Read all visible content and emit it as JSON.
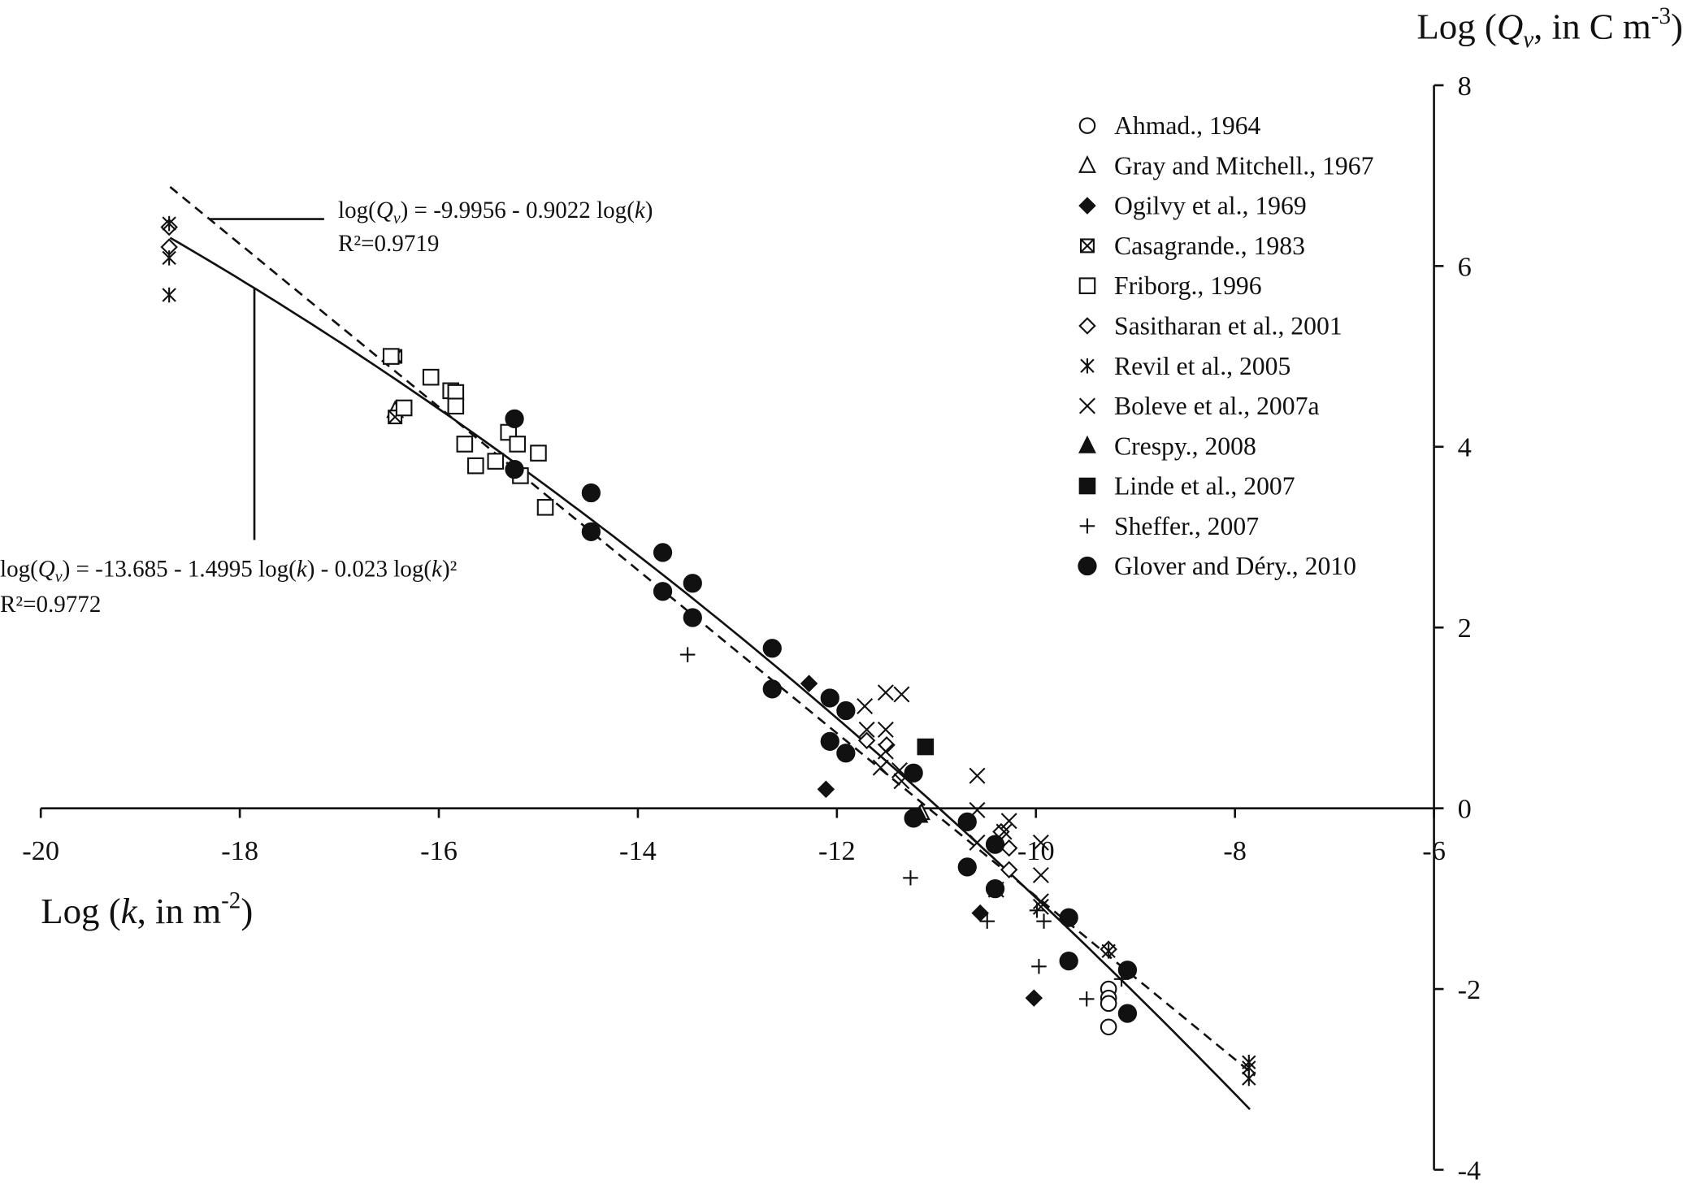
{
  "chart_data": {
    "type": "scatter",
    "xlabel": {
      "pre": "Log (",
      "var": "k",
      "mid": ", in m",
      "sup": "-2",
      "post": ")"
    },
    "ylabel": {
      "pre": "Log (",
      "var": "Q",
      "sub": "v",
      "mid": ", in C m",
      "sup": "-3",
      "post": ")"
    },
    "xlim": [
      -20,
      -6
    ],
    "ylim": [
      -4,
      8
    ],
    "x_ticks": [
      -20,
      -18,
      -16,
      -14,
      -12,
      -10,
      -8,
      -6
    ],
    "y_ticks": [
      -4,
      -2,
      0,
      2,
      4,
      6,
      8
    ],
    "legend_position": "top-right",
    "fits": [
      {
        "name": "linear fit",
        "style": "dashed",
        "coef": [
          -9.9956,
          -0.9022,
          0
        ],
        "xrange": [
          -18.7,
          -7.8
        ],
        "equation": {
          "a": "log(",
          "var": "Q",
          "sub": "v",
          "b": ") = -9.9956 - 0.9022 log(",
          "k": "k",
          "c": ")"
        },
        "r2": "R²=0.9719"
      },
      {
        "name": "quadratic fit",
        "style": "solid",
        "coef": [
          -13.685,
          -1.4995,
          -0.023
        ],
        "xrange": [
          -18.7,
          -7.85
        ],
        "equation": {
          "a": "log(",
          "var": "Q",
          "sub": "v",
          "b": ") = -13.685 - 1.4995 log(",
          "k": "k",
          "c": ") - 0.023 log(",
          "k2": "k",
          "d": ")²"
        },
        "r2": "R²=0.9772"
      }
    ],
    "series": [
      {
        "name": "Ahmad., 1964",
        "marker": "circle-open",
        "points": [
          [
            -9.27,
            -2.0
          ],
          [
            -9.27,
            -2.1
          ],
          [
            -9.27,
            -2.16
          ],
          [
            -9.27,
            -2.42
          ]
        ]
      },
      {
        "name": "Gray and Mitchell., 1967",
        "marker": "triangle-open",
        "points": [
          [
            -16.44,
            4.4
          ],
          [
            -11.15,
            -0.05
          ]
        ]
      },
      {
        "name": "Ogilvy et al., 1969",
        "marker": "diamond-filled",
        "points": [
          [
            -12.28,
            1.38
          ],
          [
            -12.11,
            0.21
          ],
          [
            -10.56,
            -1.16
          ],
          [
            -10.02,
            -2.1
          ]
        ]
      },
      {
        "name": "Casagrande., 1983",
        "marker": "square-cross",
        "points": [
          [
            -16.44,
            5.0
          ],
          [
            -16.44,
            4.33
          ]
        ]
      },
      {
        "name": "Friborg., 1996",
        "marker": "square-open",
        "points": [
          [
            -16.48,
            5.0
          ],
          [
            -16.35,
            4.43
          ],
          [
            -16.08,
            4.77
          ],
          [
            -15.88,
            4.62
          ],
          [
            -15.83,
            4.6
          ],
          [
            -15.83,
            4.45
          ],
          [
            -15.74,
            4.03
          ],
          [
            -15.63,
            3.79
          ],
          [
            -15.43,
            3.84
          ],
          [
            -15.3,
            4.16
          ],
          [
            -15.21,
            4.03
          ],
          [
            -15.18,
            3.68
          ],
          [
            -15.0,
            3.93
          ],
          [
            -14.93,
            3.33
          ]
        ]
      },
      {
        "name": "Sasitharan et al., 2001",
        "marker": "diamond-open",
        "points": [
          [
            -18.71,
            6.43
          ],
          [
            -18.71,
            6.21
          ],
          [
            -9.27,
            -1.56
          ],
          [
            -10.27,
            -0.44
          ],
          [
            -10.27,
            -0.68
          ],
          [
            -10.35,
            -0.26
          ],
          [
            -11.7,
            0.75
          ],
          [
            -11.5,
            0.7
          ]
        ]
      },
      {
        "name": "Revil et al., 2005",
        "marker": "asterisk",
        "points": [
          [
            -18.71,
            6.47
          ],
          [
            -18.71,
            6.09
          ],
          [
            -18.71,
            5.68
          ],
          [
            -7.86,
            -2.81
          ],
          [
            -7.86,
            -2.87
          ],
          [
            -7.86,
            -2.99
          ],
          [
            -9.27,
            -1.58
          ]
        ]
      },
      {
        "name": "Boleve et al., 2007a",
        "marker": "x",
        "points": [
          [
            -11.72,
            1.13
          ],
          [
            -11.51,
            1.28
          ],
          [
            -11.35,
            1.26
          ],
          [
            -11.7,
            0.87
          ],
          [
            -11.51,
            0.87
          ],
          [
            -11.51,
            0.63
          ],
          [
            -11.56,
            0.45
          ],
          [
            -11.37,
            0.42
          ],
          [
            -10.59,
            0.36
          ],
          [
            -10.59,
            -0.02
          ],
          [
            -10.59,
            -0.38
          ],
          [
            -10.32,
            -0.26
          ],
          [
            -10.27,
            -0.14
          ],
          [
            -9.95,
            -0.38
          ],
          [
            -9.95,
            -0.74
          ],
          [
            -9.95,
            -1.03
          ],
          [
            -9.95,
            -1.09
          ],
          [
            -11.35,
            0.3
          ],
          [
            -10.4,
            -0.9
          ]
        ]
      },
      {
        "name": "Crespy., 2008",
        "marker": "triangle-filled",
        "points": [
          [
            -11.17,
            -0.08
          ]
        ]
      },
      {
        "name": "Linde et al., 2007",
        "marker": "square-filled",
        "points": [
          [
            -11.11,
            0.68
          ]
        ]
      },
      {
        "name": "Sheffer., 2007",
        "marker": "plus",
        "points": [
          [
            -13.5,
            1.7
          ],
          [
            -11.26,
            -0.77
          ],
          [
            -10.49,
            -1.25
          ],
          [
            -9.99,
            -1.13
          ],
          [
            -9.97,
            -1.75
          ],
          [
            -9.92,
            -1.25
          ],
          [
            -9.49,
            -2.11
          ],
          [
            -9.14,
            -1.89
          ]
        ]
      },
      {
        "name": "Glover and Déry., 2010",
        "marker": "circle-filled",
        "points": [
          [
            -15.24,
            4.31
          ],
          [
            -15.24,
            3.75
          ],
          [
            -14.47,
            3.49
          ],
          [
            -14.47,
            3.06
          ],
          [
            -13.75,
            2.83
          ],
          [
            -13.75,
            2.4
          ],
          [
            -13.45,
            2.49
          ],
          [
            -13.45,
            2.11
          ],
          [
            -12.65,
            1.77
          ],
          [
            -12.65,
            1.32
          ],
          [
            -12.07,
            1.22
          ],
          [
            -12.07,
            0.74
          ],
          [
            -11.91,
            1.08
          ],
          [
            -11.91,
            0.61
          ],
          [
            -11.23,
            0.39
          ],
          [
            -11.23,
            -0.11
          ],
          [
            -10.69,
            -0.15
          ],
          [
            -10.69,
            -0.65
          ],
          [
            -10.41,
            -0.4
          ],
          [
            -10.41,
            -0.89
          ],
          [
            -9.67,
            -1.21
          ],
          [
            -9.67,
            -1.69
          ],
          [
            -9.08,
            -1.79
          ],
          [
            -9.08,
            -2.27
          ]
        ]
      }
    ]
  }
}
